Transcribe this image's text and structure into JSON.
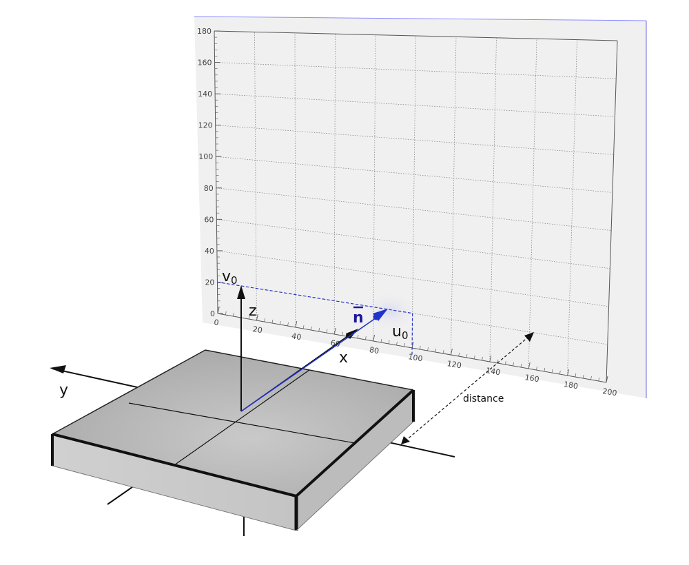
{
  "detector": {
    "u_ticks": [
      "0",
      "20",
      "40",
      "60",
      "80",
      "100",
      "120",
      "140",
      "160",
      "180",
      "200"
    ],
    "v_ticks": [
      "0",
      "20",
      "40",
      "60",
      "80",
      "100",
      "120",
      "140",
      "160",
      "180"
    ],
    "u_max": 200,
    "v_max": 180,
    "beam_center": {
      "u": 100,
      "v": 20
    },
    "colors": {
      "panel": "#f0f0f0",
      "grid": "#7a7a7a",
      "frame": "#555555"
    }
  },
  "labels": {
    "x": "x",
    "y": "y",
    "z": "z",
    "v0_main": "v",
    "v0_sub": "0",
    "u0_main": "u",
    "u0_sub": "0",
    "normal": "n",
    "distance": "distance"
  },
  "colors": {
    "normal_vector": "#2233cc",
    "sample": "#b4b4b4",
    "axes": "#111111"
  }
}
